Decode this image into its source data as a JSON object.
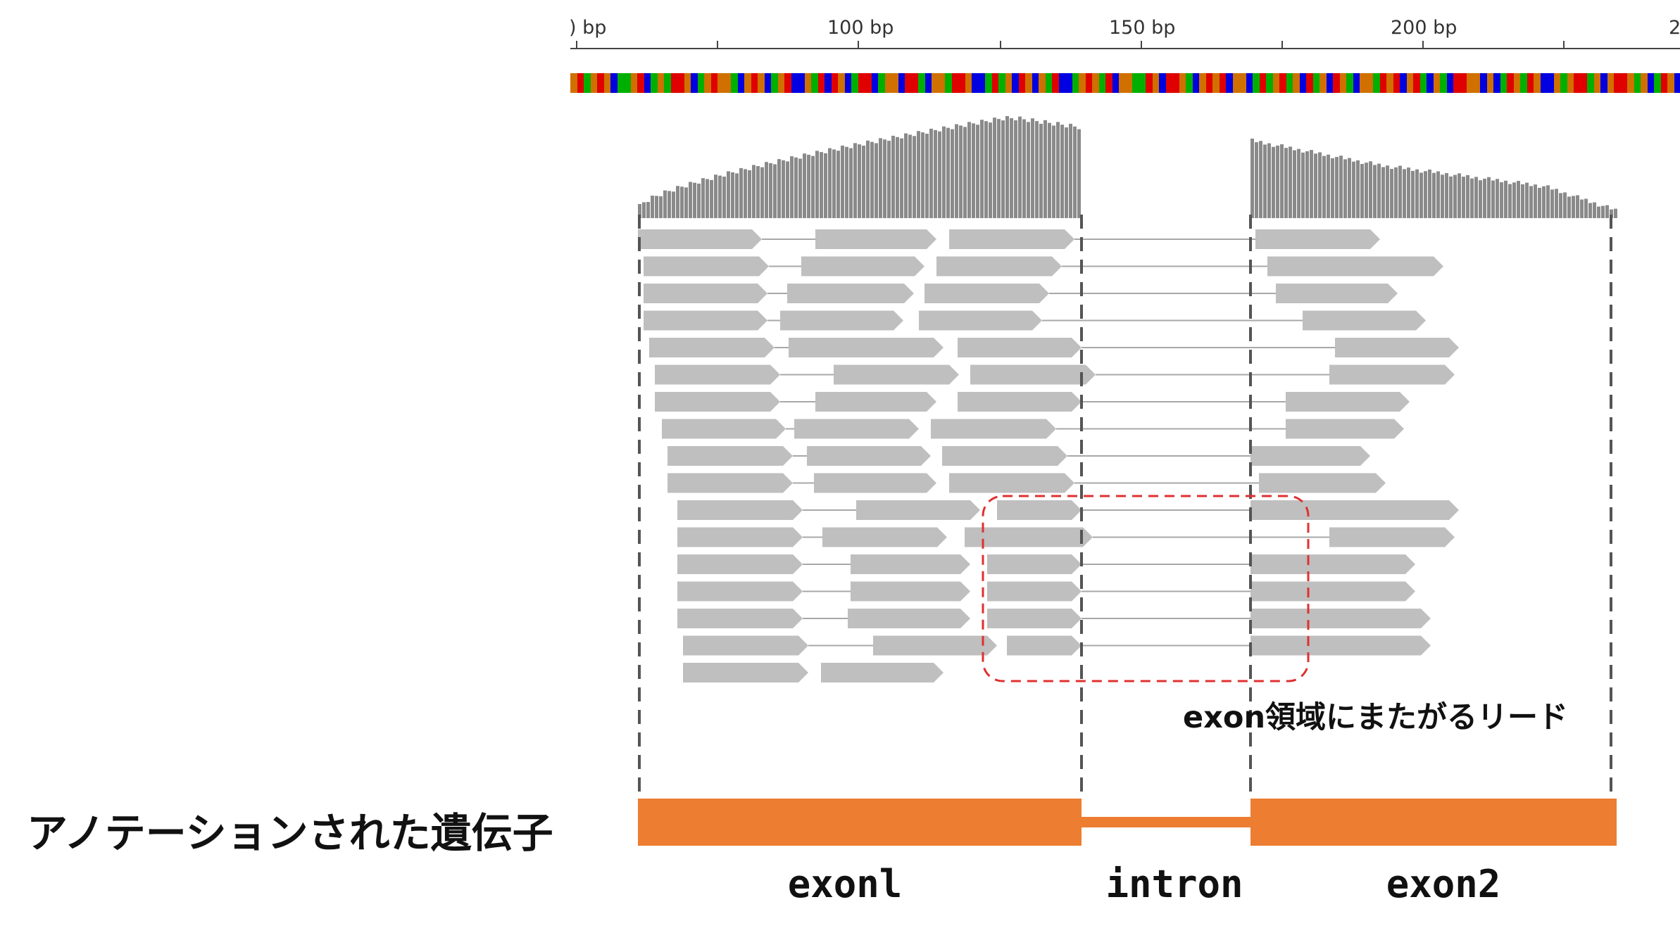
{
  "ruler": {
    "ticks": [
      {
        "label": ") bp"
      },
      {
        "label": "100 bp"
      },
      {
        "label": "150 bp"
      },
      {
        "label": "200 bp"
      },
      {
        "label": "2"
      }
    ]
  },
  "colors": {
    "A": "#00b000",
    "C": "#0000e0",
    "G": "#d07000",
    "T": "#e00000",
    "coverage": "#8a8a8a",
    "read": "#bfbfbf",
    "gene": "#ed7d31",
    "callout_box": "#e03030",
    "guide": "#555555"
  },
  "sequence": "GTAGTGCAAGTCAGATTGCAGTGGACGTGCAGTCCGATCTGCATTCAGGCTTACGGATTGCCATAGCTGCGATCCAGTGATCGGAATGCTTGACGTGTCGGCATAGTAGCTAGCTGACGGATGTCGTACGACTTGGCGCATGATGCCGAGTTAGCGTTGAGCATGC",
  "annotation": {
    "label": "アノテーションされた遺伝子",
    "regions": [
      {
        "name": "exon1",
        "label": "exonl"
      },
      {
        "name": "intron",
        "label": "intron"
      },
      {
        "name": "exon2",
        "label": "exon2"
      }
    ]
  },
  "callout": {
    "label": "exon領域にまたがるリード"
  }
}
